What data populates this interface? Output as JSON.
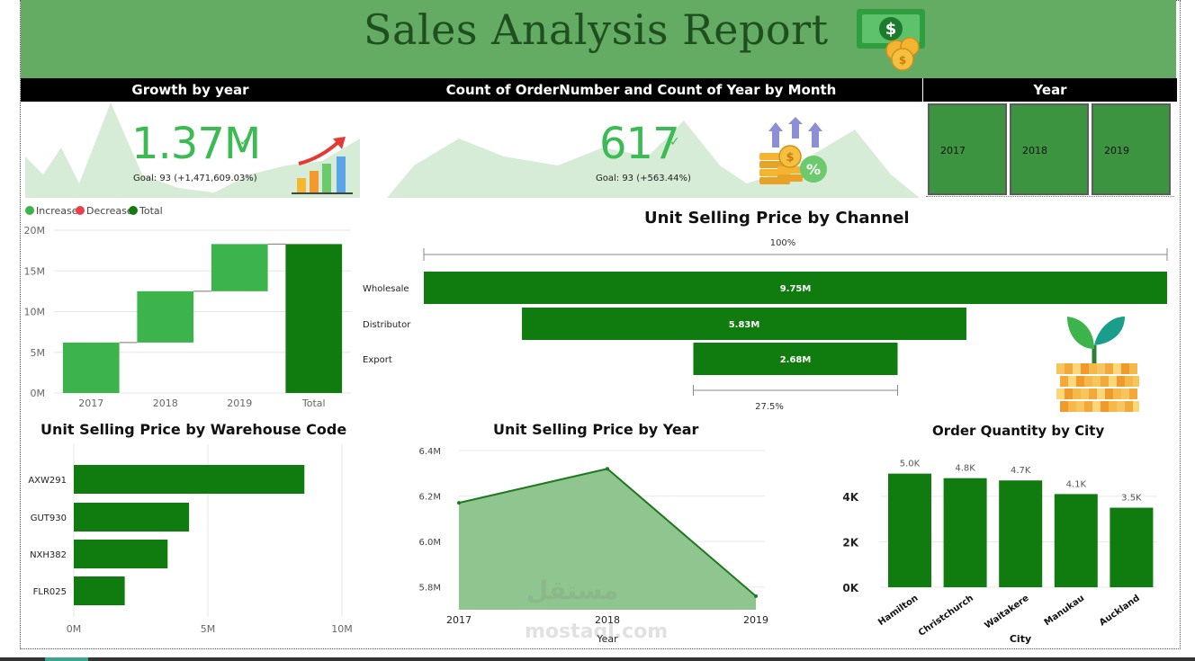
{
  "header": {
    "title": "Sales Analysis Report",
    "icon": "money-bill-coins-icon"
  },
  "sections": {
    "growth_title": "Growth by year",
    "count_title": "Count of OrderNumber and Count of Year by Month",
    "year_title": "Year"
  },
  "kpi_growth": {
    "value": "1.37M",
    "goal": "Goal: 93 (+1,471,609.03%)",
    "icon": "growth-chart-icon"
  },
  "kpi_count": {
    "value": "617",
    "goal": "Goal: 93 (+563.44%)",
    "icon": "coins-percent-icon"
  },
  "year_slicer": {
    "options": [
      "2017",
      "2018",
      "2019"
    ]
  },
  "colors": {
    "dark_green": "#107c10",
    "light_green": "#3cb44b",
    "header_green": "#64ab64",
    "decrease_red": "#e8414a",
    "area_fill": "#8fc58f"
  },
  "chart_data": [
    {
      "id": "waterfall",
      "type": "bar",
      "subtype": "waterfall",
      "title": "",
      "legend": [
        {
          "label": "Increase",
          "color": "#3cb44b"
        },
        {
          "label": "Decrease",
          "color": "#e8414a"
        },
        {
          "label": "Total",
          "color": "#107c10"
        }
      ],
      "legend_position": "top-left",
      "categories": [
        "2017",
        "2018",
        "2019",
        "Total"
      ],
      "values": [
        6.2,
        6.3,
        5.8,
        18.3
      ],
      "kinds": [
        "increase",
        "increase",
        "increase",
        "total"
      ],
      "yticks": [
        "0M",
        "5M",
        "10M",
        "15M",
        "20M"
      ],
      "ylim": [
        0,
        20
      ],
      "grid": true
    },
    {
      "id": "funnel",
      "type": "bar",
      "subtype": "funnel",
      "title": "Unit Selling Price by Channel",
      "categories": [
        "Wholesale",
        "Distributor",
        "Export"
      ],
      "values": [
        9.75,
        5.83,
        2.68
      ],
      "labels": [
        "9.75M",
        "5.83M",
        "2.68M"
      ],
      "top_percent": "100%",
      "bottom_percent": "27.5%"
    },
    {
      "id": "warehouse",
      "type": "bar",
      "orientation": "horizontal",
      "title": "Unit Selling Price by Warehouse Code",
      "categories": [
        "AXW291",
        "GUT930",
        "NXH382",
        "FLR025"
      ],
      "values": [
        8.6,
        4.3,
        3.5,
        1.9
      ],
      "xticks": [
        "0M",
        "5M",
        "10M"
      ],
      "xlim": [
        0,
        10
      ],
      "grid": true
    },
    {
      "id": "year_area",
      "type": "area",
      "title": "Unit Selling Price by Year",
      "x": [
        "2017",
        "2018",
        "2019"
      ],
      "values": [
        6.17,
        6.32,
        5.76
      ],
      "yticks": [
        "5.8M",
        "6.0M",
        "6.2M",
        "6.4M"
      ],
      "ylim": [
        5.7,
        6.4
      ],
      "xlabel": "Year",
      "grid": true
    },
    {
      "id": "city",
      "type": "bar",
      "title": "Order Quantity by City",
      "categories": [
        "Hamilton",
        "Christchurch",
        "Waitakere",
        "Manukau",
        "Auckland"
      ],
      "values": [
        5.0,
        4.8,
        4.7,
        4.1,
        3.5
      ],
      "labels": [
        "5.0K",
        "4.8K",
        "4.7K",
        "4.1K",
        "3.5K"
      ],
      "yticks": [
        "0K",
        "2K",
        "4K"
      ],
      "ylim": [
        0,
        5.5
      ],
      "xlabel": "City",
      "grid": true
    }
  ],
  "watermark": {
    "arabic": "مستقل",
    "latin": "mostaql.com"
  }
}
